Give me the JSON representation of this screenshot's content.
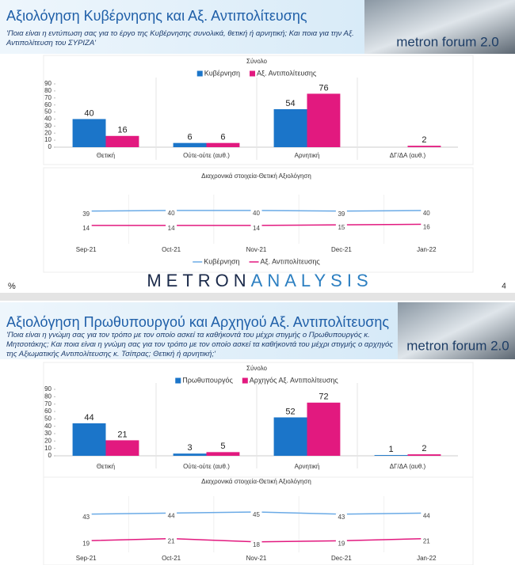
{
  "slides": [
    {
      "title": "Αξιολόγηση Κυβέρνησης και Αξ. Αντιπολίτευσης",
      "subtitle": "'Ποια είναι η εντύπωση σας για το έργο της Κυβέρνησης συνολικά, θετική ή αρνητική; Και ποια για την Αξ. Αντιπολίτευση του ΣΥΡΙΖΑ'",
      "logo": "metron forum 2.0"
    },
    {
      "title": "Αξιολόγηση Πρωθυπουργού και Αρχηγού Αξ. Αντιπολίτευσης",
      "subtitle": "'Ποια είναι η γνώμη σας για τον τρόπο με τον οποίο ασκεί τα καθήκοντά του μέχρι στιγμής ο Πρωθυπουργός κ. Μητσοτάκης; Και ποια είναι η γνώμη σας για τον τρόπο με τον οποίο ασκεί τα καθήκοντά του μέχρι στιγμής ο αρχηγός της Αξιωματικής Αντιπολίτευσης κ. Τσίπρας; Θετική ή αρνητική;'",
      "logo": "metron forum 2.0"
    }
  ],
  "footer": {
    "unit": "%",
    "brand_a": "METRON",
    "brand_b": "ANALYSIS",
    "page": "4"
  },
  "chart_data": [
    {
      "type": "bar",
      "title": "Σύνολο",
      "categories": [
        "Θετική",
        "Ούτε-ούτε (αυθ.)",
        "Αρνητική",
        "ΔΓ/ΔΑ (αυθ.)"
      ],
      "series": [
        {
          "name": "Κυβέρνηση",
          "color": "#1b75c9",
          "values": [
            40,
            6,
            54,
            null
          ]
        },
        {
          "name": "Αξ. Αντιπολίτευσης",
          "color": "#e2197f",
          "values": [
            16,
            6,
            76,
            2
          ]
        }
      ],
      "ylim": [
        0,
        90
      ],
      "yticks": [
        0,
        10,
        20,
        30,
        40,
        50,
        60,
        70,
        80,
        90
      ],
      "grid": false,
      "legend": "top"
    },
    {
      "type": "line",
      "title": "Διαχρονικά στοιχεία-Θετική Αξιολόγηση",
      "categories": [
        "Sep-21",
        "Oct-21",
        "Nov-21",
        "Dec-21",
        "Jan-22"
      ],
      "series": [
        {
          "name": "Κυβέρνηση",
          "color": "#6aaae6",
          "values": [
            39,
            40,
            40,
            39,
            40
          ]
        },
        {
          "name": "Αξ. Αντιπολίτευσης",
          "color": "#e2197f",
          "values": [
            14,
            14,
            14,
            15,
            16
          ]
        }
      ],
      "legend": "bottom"
    },
    {
      "type": "bar",
      "title": "Σύνολο",
      "categories": [
        "Θετική",
        "Ούτε-ούτε (αυθ.)",
        "Αρνητική",
        "ΔΓ/ΔΑ (αυθ.)"
      ],
      "series": [
        {
          "name": "Πρωθυπουργός",
          "color": "#1b75c9",
          "values": [
            44,
            3,
            52,
            1
          ]
        },
        {
          "name": "Αρχηγός Αξ. Αντιπολίτευσης",
          "color": "#e2197f",
          "values": [
            21,
            5,
            72,
            2
          ]
        }
      ],
      "ylim": [
        0,
        90
      ],
      "yticks": [
        0,
        10,
        20,
        30,
        40,
        50,
        60,
        70,
        80,
        90
      ],
      "grid": false,
      "legend": "top"
    },
    {
      "type": "line",
      "title": "Διαχρονικά στοιχεία-Θετική Αξιολόγηση",
      "categories": [
        "Sep-21",
        "Oct-21",
        "Nov-21",
        "Dec-21",
        "Jan-22"
      ],
      "series": [
        {
          "color": "#6aaae6",
          "values": [
            43,
            44,
            45,
            43,
            44
          ]
        },
        {
          "color": "#e2197f",
          "values": [
            19,
            21,
            18,
            19,
            21
          ]
        }
      ]
    }
  ]
}
